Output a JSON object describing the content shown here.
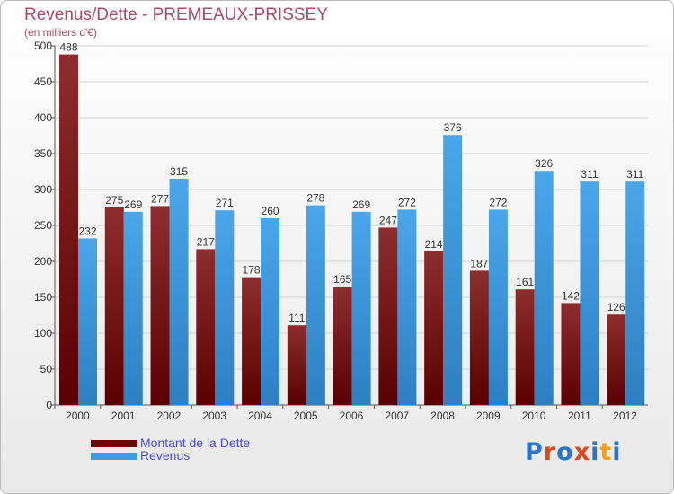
{
  "header": {
    "title": "Revenus/Dette - PREMEAUX-PRISSEY",
    "subtitle": "(en milliers d'€)"
  },
  "legend": [
    {
      "label": "Montant de la Dette",
      "color": "#7a1a1a"
    },
    {
      "label": "Revenus",
      "color": "#3d9ae0"
    }
  ],
  "logo": {
    "text": "Proxiti",
    "colors": [
      "#2b74c8",
      "#e04a1a",
      "#2b74c8",
      "#e04a1a",
      "#2b74c8",
      "#f0a020",
      "#2b74c8"
    ]
  },
  "chart_data": {
    "type": "bar",
    "categories": [
      "2000",
      "2001",
      "2002",
      "2003",
      "2004",
      "2005",
      "2006",
      "2007",
      "2008",
      "2009",
      "2010",
      "2011",
      "2012"
    ],
    "series": [
      {
        "name": "Montant de la Dette",
        "values": [
          488,
          275,
          277,
          217,
          178,
          111,
          165,
          247,
          214,
          187,
          161,
          142,
          126
        ]
      },
      {
        "name": "Revenus",
        "values": [
          232,
          269,
          315,
          271,
          260,
          278,
          269,
          272,
          376,
          272,
          326,
          311,
          311
        ]
      }
    ],
    "ylim": [
      0,
      500
    ],
    "yticks": [
      0,
      50,
      100,
      150,
      200,
      250,
      300,
      350,
      400,
      450,
      500
    ],
    "grid": true,
    "legend_position": "bottom-left"
  }
}
